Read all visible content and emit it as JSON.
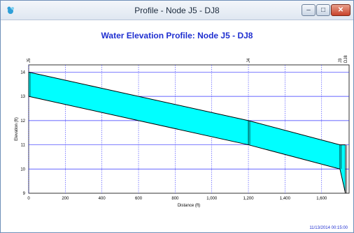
{
  "window": {
    "title": "Profile - Node J5 - DJ8",
    "minimize_glyph": "–",
    "maximize_glyph": "□",
    "close_glyph": "✕",
    "icon": "swmm-app-icon"
  },
  "timestamp": "11/13/2014 00:15:00",
  "colors": {
    "fill": "#00ffff",
    "grid": "#3333ff",
    "title": "#1f2fd0",
    "line": "#000000"
  },
  "chart_data": {
    "type": "area",
    "title": "Water Elevation Profile:  Node J5 - DJ8",
    "xlabel": "Distance (ft)",
    "ylabel": "Elevation (ft)",
    "xlim": [
      0,
      1750
    ],
    "ylim": [
      9,
      14.3
    ],
    "x_ticks": [
      "0",
      "200",
      "400",
      "600",
      "800",
      "1,000",
      "1,200",
      "1,400",
      "1,600"
    ],
    "x_tick_values": [
      0,
      200,
      400,
      600,
      800,
      1000,
      1200,
      1400,
      1600
    ],
    "y_ticks": [
      "9",
      "10",
      "11",
      "12",
      "13",
      "14"
    ],
    "y_tick_values": [
      9,
      10,
      11,
      12,
      13,
      14
    ],
    "nodes": [
      {
        "label": "J5",
        "x": 0
      },
      {
        "label": "J4",
        "x": 1200
      },
      {
        "label": "J3",
        "x": 1700
      },
      {
        "label": "DJ8",
        "x": 1730
      }
    ],
    "series": [
      {
        "name": "top",
        "x": [
          0,
          1200,
          1700,
          1730
        ],
        "y": [
          14,
          12,
          11,
          11
        ]
      },
      {
        "name": "bottom",
        "x": [
          0,
          1200,
          1700,
          1730
        ],
        "y": [
          13,
          11,
          10,
          9
        ]
      }
    ]
  }
}
